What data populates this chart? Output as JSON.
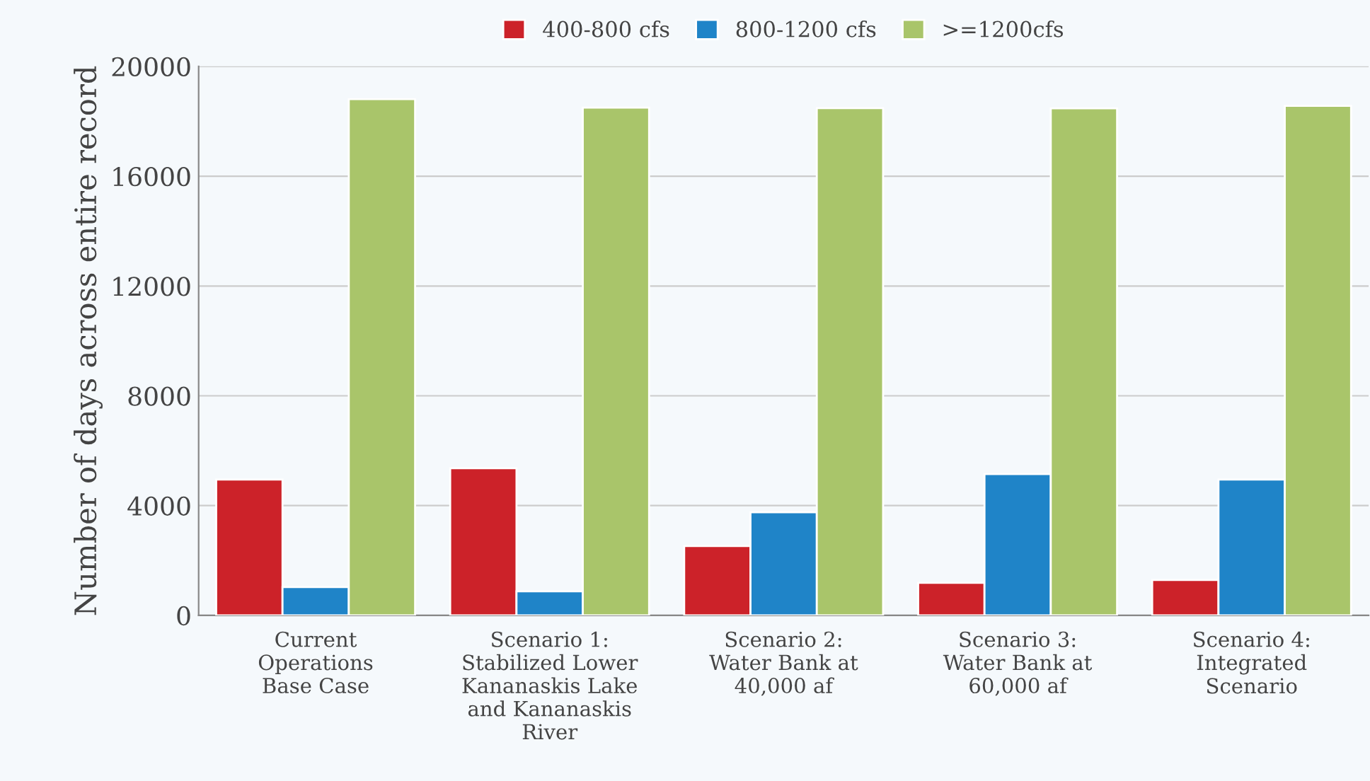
{
  "chart_data": {
    "type": "bar",
    "categories": [
      "Current\nOperations\nBase Case",
      "Scenario 1:\nStabilized Lower\nKananaskis Lake\nand Kananaskis\nRiver",
      "Scenario 2:\nWater Bank at\n40,000 af",
      "Scenario 3:\nWater Bank at\n60,000 af",
      "Scenario 4:\nIntegrated\nScenario"
    ],
    "series": [
      {
        "name": "400-800 cfs",
        "color": "#cc2229",
        "values": [
          4950,
          5360,
          2530,
          1190,
          1290
        ]
      },
      {
        "name": "800-1200 cfs",
        "color": "#1f84c8",
        "values": [
          1030,
          880,
          3760,
          5150,
          4950
        ]
      },
      {
        "name": ">=1200cfs",
        "color": "#a9c56a",
        "values": [
          18810,
          18500,
          18480,
          18470,
          18560
        ]
      }
    ],
    "ylabel": "Number of days across entire record",
    "ylim": [
      0,
      20000
    ],
    "yticks": [
      0,
      4000,
      8000,
      12000,
      16000,
      20000
    ],
    "grid": "y",
    "legend": "top"
  }
}
